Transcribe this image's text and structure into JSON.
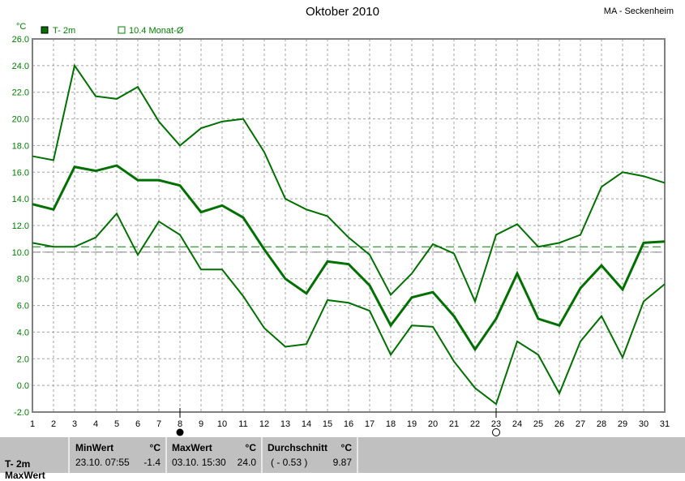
{
  "title": "Oktober 2010",
  "station": "MA - Seckenheim",
  "legend": {
    "series_label": "T- 2m",
    "avg_label": "10.4 Monat-Ø"
  },
  "colors": {
    "line": "#007000",
    "axis_text": "#008000",
    "avg_line": "#008000",
    "ref_line": "#808080",
    "grid": "#a0a0a0"
  },
  "moon": {
    "new_moon_day": 8,
    "full_moon_day": 23
  },
  "chart_data": {
    "type": "line",
    "ylabel": "°C",
    "ylim": [
      -2,
      26
    ],
    "yticks": [
      "26.0",
      "24.0",
      "22.0",
      "20.0",
      "18.0",
      "16.0",
      "14.0",
      "12.0",
      "10.0",
      "8.0",
      "6.0",
      "4.0",
      "2.0",
      "0.0",
      "-2.0"
    ],
    "x": [
      1,
      2,
      3,
      4,
      5,
      6,
      7,
      8,
      9,
      10,
      11,
      12,
      13,
      14,
      15,
      16,
      17,
      18,
      19,
      20,
      21,
      22,
      23,
      24,
      25,
      26,
      27,
      28,
      29,
      30,
      31
    ],
    "grid": true,
    "month_avg": 10.4,
    "ref_line": 10.0,
    "series": [
      {
        "name": "max",
        "values": [
          17.2,
          16.9,
          24.0,
          21.7,
          21.5,
          22.4,
          19.8,
          18.0,
          19.3,
          19.8,
          20.0,
          17.5,
          14.0,
          13.2,
          12.7,
          11.1,
          9.8,
          6.8,
          8.4,
          10.6,
          9.9,
          6.3,
          11.3,
          12.1,
          10.4,
          10.7,
          11.3,
          14.9,
          16.0,
          15.7,
          15.2
        ]
      },
      {
        "name": "T- 2m",
        "values": [
          13.6,
          13.2,
          16.4,
          16.1,
          16.5,
          15.4,
          15.4,
          15.0,
          13.0,
          13.5,
          12.6,
          10.2,
          8.0,
          6.9,
          9.3,
          9.1,
          7.5,
          4.5,
          6.6,
          7.0,
          5.2,
          2.7,
          5.0,
          8.4,
          5.0,
          4.5,
          7.3,
          9.0,
          7.2,
          10.7,
          10.8
        ]
      },
      {
        "name": "min",
        "values": [
          10.7,
          10.4,
          10.4,
          11.1,
          12.9,
          9.8,
          12.3,
          11.3,
          8.7,
          8.7,
          6.7,
          4.3,
          2.9,
          3.1,
          6.4,
          6.2,
          5.6,
          2.3,
          4.5,
          4.4,
          1.8,
          -0.2,
          -1.4,
          3.3,
          2.3,
          -0.6,
          3.3,
          5.2,
          2.1,
          6.3,
          7.6
        ]
      }
    ]
  },
  "panel": {
    "row1": "T- 2m",
    "row2": "MaxWert",
    "min": {
      "label": "MinWert",
      "unit": "°C",
      "date": "23.10.  07:55",
      "value": "-1.4"
    },
    "max": {
      "label": "MaxWert",
      "unit": "°C",
      "date": "03.10.  15:30",
      "value": "24.0"
    },
    "avg": {
      "label": "Durchschnitt",
      "unit": "°C",
      "dev": "( - 0.53 )",
      "value": "9.87"
    }
  }
}
